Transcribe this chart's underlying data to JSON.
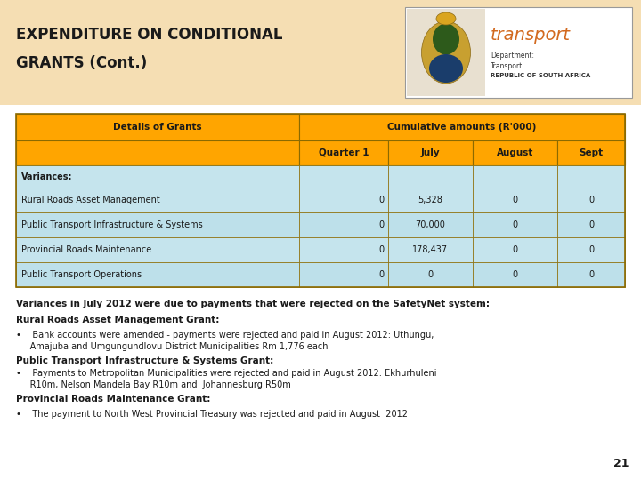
{
  "title_line1": "EXPENDITURE ON CONDITIONAL",
  "title_line2": "GRANTS (Cont.)",
  "header_bg": "#F5DEB3",
  "table_orange": "#FFA500",
  "table_blue_light": "#C5E4ED",
  "table_blue_dark": "#B8D8E3",
  "table_border_color": "#8B6A00",
  "rows": [
    [
      "Variances:",
      "",
      "",
      "",
      ""
    ],
    [
      "Rural Roads Asset Management",
      "0",
      "5,328",
      "0",
      "0"
    ],
    [
      "Public Transport Infrastructure & Systems",
      "0",
      "70,000",
      "0",
      "0"
    ],
    [
      "Provincial Roads Maintenance",
      "0",
      "178,437",
      "0",
      "0"
    ],
    [
      "Public Transport Operations",
      "0",
      "0",
      "0",
      "0"
    ]
  ],
  "body_blocks": [
    {
      "text": "Variances in July 2012 were due to payments that were rejected on the SafetyNet system:",
      "bold": true,
      "size": 7.5
    },
    {
      "text": "",
      "bold": false,
      "size": 4
    },
    {
      "text": "Rural Roads Asset Management Grant:",
      "bold": true,
      "size": 7.5
    },
    {
      "text": "",
      "bold": false,
      "size": 3
    },
    {
      "text": "•    Bank accounts were amended - payments were rejected and paid in August 2012: Uthungu,\n     Amajuba and Umgungundlovu District Municipalities Rm 1,776 each",
      "bold": false,
      "size": 7.0
    },
    {
      "text": "",
      "bold": false,
      "size": 4
    },
    {
      "text": "Public Transport Infrastructure & Systems Grant:",
      "bold": true,
      "size": 7.5
    },
    {
      "text": "•    Payments to Metropolitan Municipalities were rejected and paid in August 2012: Ekhurhuleni\n     R10m, Nelson Mandela Bay R10m and  Johannesburg R50m",
      "bold": false,
      "size": 7.0
    },
    {
      "text": "",
      "bold": false,
      "size": 4
    },
    {
      "text": "Provincial Roads Maintenance Grant:",
      "bold": true,
      "size": 7.5
    },
    {
      "text": "",
      "bold": false,
      "size": 3
    },
    {
      "text": "•    The payment to North West Provincial Treasury was rejected and paid in August  2012",
      "bold": false,
      "size": 7.0
    }
  ],
  "page_number": "21",
  "bg_color": "#FFFFFF"
}
